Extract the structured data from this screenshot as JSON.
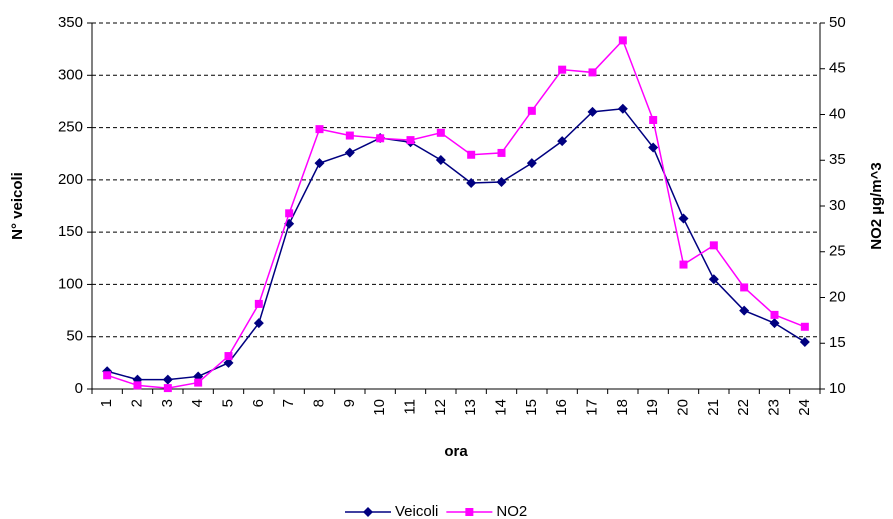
{
  "chart_data": {
    "type": "line",
    "x_label": "ora",
    "y_label": "N° veicoli",
    "y2_label": "NO2 µg/m^3",
    "categories": [
      "1",
      "2",
      "3",
      "4",
      "5",
      "6",
      "7",
      "8",
      "9",
      "10",
      "11",
      "12",
      "13",
      "14",
      "15",
      "16",
      "17",
      "18",
      "19",
      "20",
      "21",
      "22",
      "23",
      "24"
    ],
    "series": [
      {
        "name": "Veicoli",
        "color": "#000080",
        "marker": "diamond",
        "values": [
          17,
          9,
          9,
          12,
          25,
          63,
          158,
          216,
          226,
          240,
          236,
          219,
          197,
          198,
          216,
          237,
          265,
          268,
          231,
          163,
          105,
          75,
          63,
          45
        ]
      },
      {
        "name": "NO2",
        "color": "#ff00ff",
        "marker": "square",
        "axis": "y2",
        "values": [
          11.5,
          10.4,
          10.1,
          10.7,
          13.6,
          19.3,
          29.2,
          38.4,
          37.7,
          37.4,
          37.2,
          38.0,
          35.6,
          35.8,
          40.4,
          44.9,
          44.6,
          48.1,
          39.4,
          23.6,
          25.7,
          21.1,
          18.1,
          16.8
        ]
      }
    ],
    "ylim": [
      0,
      350
    ],
    "yticks": [
      0,
      50,
      100,
      150,
      200,
      250,
      300,
      350
    ],
    "y2lim": [
      10,
      50
    ],
    "y2ticks": [
      10,
      15,
      20,
      25,
      30,
      35,
      40,
      45,
      50
    ],
    "grid": true,
    "legend": "bottom"
  }
}
